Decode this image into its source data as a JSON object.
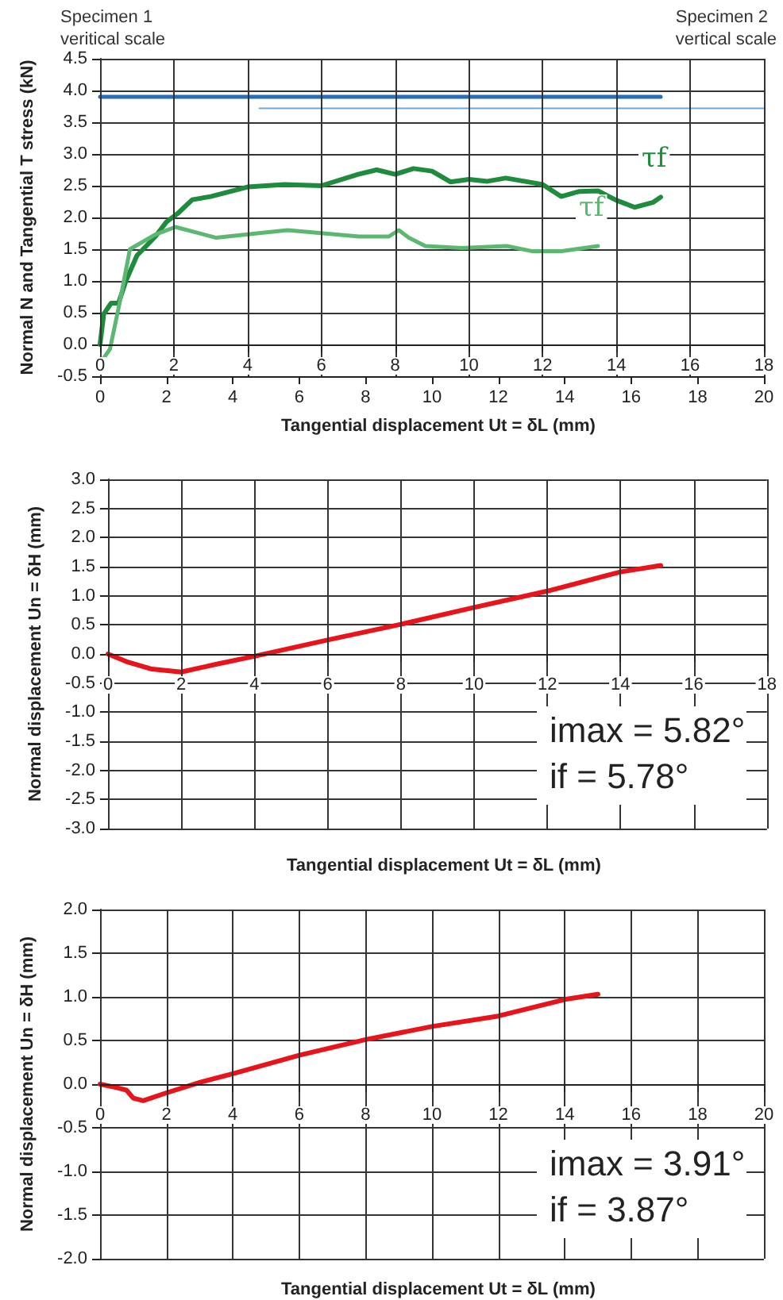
{
  "chart_data": [
    {
      "type": "line",
      "xlabel": "Tangential displacement Ut = δL (mm)",
      "ylabel": "Normal N and Tangential T stress (kN)",
      "xlim": [
        0,
        20
      ],
      "xticks": [
        0,
        2,
        4,
        6,
        8,
        10,
        12,
        14,
        16,
        18,
        20
      ],
      "x2lim": [
        0,
        18
      ],
      "x2ticks": [
        0,
        2,
        4,
        6,
        8,
        10,
        12,
        14,
        16,
        18
      ],
      "ylim": [
        -0.5,
        4.5
      ],
      "yticks": [
        -0.5,
        {
          "value": 0,
          "label": "0.0"
        },
        0.5,
        {
          "value": 1,
          "label": "1.0"
        },
        1.5,
        {
          "value": 2,
          "label": "2.0"
        },
        2.5,
        {
          "value": 3,
          "label": "3.0"
        },
        3.5,
        {
          "value": 4,
          "label": "4.0"
        },
        4.5
      ],
      "grid": true,
      "annotations": [
        "Specimen 1\nveritical scale",
        "Specimen 2\nvertical scale"
      ],
      "series": [
        {
          "name": "τf",
          "color": "#1e8c3c",
          "axis": "x2",
          "x": [
            0,
            0.1,
            0.3,
            0.5,
            0.7,
            1.0,
            1.5,
            1.8,
            2.1,
            2.5,
            3.0,
            4,
            5,
            6,
            7,
            7.5,
            8,
            8.5,
            9,
            9.5,
            10,
            10.5,
            11,
            12,
            12.5,
            13,
            13.5,
            14,
            14.5,
            15,
            15.2
          ],
          "values": [
            0,
            0.48,
            0.65,
            0.65,
            1.0,
            1.4,
            1.7,
            1.93,
            2.06,
            2.28,
            2.33,
            2.48,
            2.52,
            2.5,
            2.68,
            2.75,
            2.68,
            2.77,
            2.73,
            2.56,
            2.6,
            2.57,
            2.62,
            2.52,
            2.33,
            2.41,
            2.42,
            2.27,
            2.16,
            2.24,
            2.32
          ]
        },
        {
          "name": "τf",
          "color": "#5cb870",
          "x": [
            0,
            0.3,
            0.6,
            0.9,
            1.66,
            2.27,
            3.5,
            4.9,
            5.65,
            7.8,
            8.7,
            9.0,
            9.3,
            9.8,
            10.9,
            12.25,
            13.0,
            13.9,
            15.0
          ],
          "values": [
            -0.3,
            -0.07,
            0.68,
            1.5,
            1.73,
            1.85,
            1.68,
            1.76,
            1.8,
            1.7,
            1.7,
            1.8,
            1.68,
            1.55,
            1.52,
            1.55,
            1.47,
            1.47,
            1.55
          ]
        },
        {
          "color": "#2a6db5",
          "axis": "x2",
          "x": [
            0,
            15.2
          ],
          "values": [
            3.9,
            3.9
          ]
        },
        {
          "color": "#6fa8dc",
          "x": [
            4.8,
            20
          ],
          "values": [
            3.72,
            3.72
          ]
        }
      ]
    },
    {
      "type": "line",
      "xlabel": "Tangential displacement Ut = δL (mm)",
      "ylabel": "Normal displacement Un = δH (mm)",
      "xlim": [
        0,
        18
      ],
      "xticks": [
        0,
        2,
        4,
        6,
        8,
        10,
        12,
        14,
        16,
        18
      ],
      "ylim": [
        -3,
        3
      ],
      "yticks": [
        {
          "value": -3,
          "label": "-3.0"
        },
        -2.5,
        {
          "value": -2,
          "label": "-2.0"
        },
        -1.5,
        {
          "value": -1,
          "label": "-1.0"
        },
        -0.5,
        {
          "value": 0,
          "label": "0.0"
        },
        0.5,
        {
          "value": 1,
          "label": "1.0"
        },
        1.5,
        {
          "value": 2,
          "label": "2.0"
        },
        2.5,
        {
          "value": 3,
          "label": "3.0"
        }
      ],
      "grid": true,
      "annotations": [
        "imax = 5.82°",
        "if = 5.78°"
      ],
      "series": [
        {
          "color": "#e8141c",
          "x": [
            0,
            0.5,
            1.2,
            2.0,
            3.0,
            4.0,
            6.0,
            8.0,
            10.0,
            12.0,
            14.0,
            15.1
          ],
          "values": [
            0,
            -0.13,
            -0.26,
            -0.31,
            -0.17,
            -0.04,
            0.24,
            0.51,
            0.8,
            1.08,
            1.41,
            1.52
          ]
        }
      ]
    },
    {
      "type": "line",
      "xlabel": "Tangential displacement Ut = δL (mm)",
      "ylabel": "Normal displacement Un = δH (mm)",
      "xlim": [
        0,
        20
      ],
      "xticks": [
        0,
        2,
        4,
        6,
        8,
        10,
        12,
        14,
        16,
        18,
        20
      ],
      "ylim": [
        -2,
        2
      ],
      "yticks": [
        {
          "value": -2,
          "label": "-2.0"
        },
        -1.5,
        {
          "value": -1,
          "label": "-1.0"
        },
        -0.5,
        {
          "value": 0,
          "label": "0.0"
        },
        0.5,
        {
          "value": 1,
          "label": "1.0"
        },
        1.5,
        {
          "value": 2,
          "label": "2.0"
        }
      ],
      "grid": true,
      "annotations": [
        "imax = 3.91°",
        "if = 3.87°"
      ],
      "series": [
        {
          "color": "#e8141c",
          "x": [
            0,
            0.5,
            0.8,
            1.0,
            1.3,
            2.0,
            3.0,
            4.0,
            6.0,
            8.0,
            10.0,
            12.0,
            14.0,
            15.0
          ],
          "values": [
            0,
            -0.04,
            -0.07,
            -0.16,
            -0.19,
            -0.1,
            0.02,
            0.12,
            0.33,
            0.51,
            0.66,
            0.78,
            0.97,
            1.03
          ]
        }
      ]
    }
  ]
}
